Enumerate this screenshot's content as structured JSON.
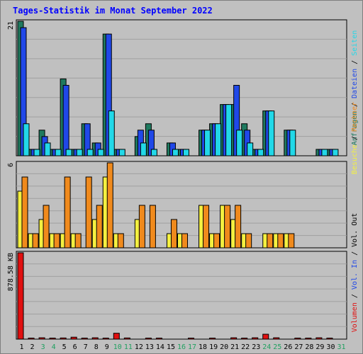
{
  "title": "Tages-Statistik im Monat September 2022",
  "colors": {
    "background": "#c0c0c0",
    "grid": "#a0a0a0",
    "anfragen": "#1f7a5f",
    "dateien": "#2048e8",
    "seiten": "#22d8e8",
    "besuche": "#f4f040",
    "rechner": "#f08a1c",
    "volumen": "#e01010",
    "day_normal": "#000000",
    "day_weekend": "#20a060",
    "day_today": "#20a060"
  },
  "chart_data": [
    {
      "type": "bar",
      "name": "hits",
      "ylabel_max": "21",
      "ylim": [
        0,
        21
      ],
      "legend_parts": [
        {
          "text": "Anfragen",
          "color_key": "anfragen"
        },
        {
          "text": " / ",
          "color_key": "day_normal"
        },
        {
          "text": "Dateien",
          "color_key": "dateien"
        },
        {
          "text": " / ",
          "color_key": "day_normal"
        },
        {
          "text": "Seiten",
          "color_key": "seiten"
        }
      ],
      "x": [
        1,
        2,
        3,
        4,
        5,
        6,
        7,
        8,
        9,
        10,
        11,
        12,
        13,
        14,
        15,
        16,
        17,
        18,
        19,
        20,
        21,
        22,
        23,
        24,
        25,
        26,
        27,
        28,
        29,
        30,
        31
      ],
      "series": [
        {
          "name": "Anfragen",
          "values": [
            21,
            1,
            4,
            1,
            12,
            1,
            5,
            2,
            19,
            1,
            0,
            3,
            5,
            0,
            2,
            1,
            0,
            4,
            5,
            8,
            8,
            5,
            1,
            7,
            0,
            4,
            0,
            0,
            1,
            1,
            0
          ],
          "color_key": "anfragen"
        },
        {
          "name": "Dateien",
          "values": [
            20,
            1,
            3,
            1,
            11,
            1,
            5,
            2,
            19,
            1,
            0,
            4,
            4,
            0,
            2,
            1,
            0,
            4,
            5,
            8,
            11,
            4,
            1,
            7,
            0,
            4,
            0,
            0,
            1,
            1,
            0
          ],
          "color_key": "dateien"
        },
        {
          "name": "Seiten",
          "values": [
            5,
            1,
            2,
            1,
            1,
            1,
            1,
            1,
            7,
            1,
            0,
            2,
            1,
            0,
            1,
            1,
            0,
            4,
            5,
            8,
            4,
            2,
            1,
            7,
            0,
            4,
            0,
            0,
            1,
            1,
            0
          ],
          "color_key": "seiten"
        }
      ]
    },
    {
      "type": "bar",
      "name": "visits",
      "ylabel_max": "6",
      "ylim": [
        0,
        6
      ],
      "legend_parts": [
        {
          "text": "Besuche",
          "color_key": "besuche"
        },
        {
          "text": " / ",
          "color_key": "day_normal"
        },
        {
          "text": "Rechner",
          "color_key": "rechner"
        }
      ],
      "x": [
        1,
        2,
        3,
        4,
        5,
        6,
        7,
        8,
        9,
        10,
        11,
        12,
        13,
        14,
        15,
        16,
        17,
        18,
        19,
        20,
        21,
        22,
        23,
        24,
        25,
        26,
        27,
        28,
        29,
        30,
        31
      ],
      "series": [
        {
          "name": "Besuche",
          "values": [
            4,
            1,
            2,
            1,
            1,
            1,
            0,
            2,
            5,
            1,
            0,
            2,
            0,
            0,
            1,
            1,
            0,
            3,
            1,
            3,
            2,
            1,
            0,
            1,
            1,
            1,
            0,
            0,
            0,
            0,
            0
          ],
          "color_key": "besuche"
        },
        {
          "name": "Rechner",
          "values": [
            5,
            1,
            3,
            1,
            5,
            1,
            5,
            3,
            6,
            1,
            0,
            3,
            3,
            0,
            2,
            1,
            0,
            3,
            1,
            3,
            3,
            1,
            0,
            1,
            1,
            1,
            0,
            0,
            0,
            0,
            0
          ],
          "color_key": "rechner"
        }
      ]
    },
    {
      "type": "bar",
      "name": "volume",
      "ylabel_max": "878.58 KB",
      "ylim": [
        0,
        878.58
      ],
      "legend_parts": [
        {
          "text": "Volumen",
          "color_key": "volumen"
        },
        {
          "text": " / ",
          "color_key": "day_normal"
        },
        {
          "text": "Vol. In",
          "color_key": "dateien"
        },
        {
          "text": " / ",
          "color_key": "day_normal"
        },
        {
          "text": "Vol. Out",
          "color_key": "day_normal"
        }
      ],
      "x": [
        1,
        2,
        3,
        4,
        5,
        6,
        7,
        8,
        9,
        10,
        11,
        12,
        13,
        14,
        15,
        16,
        17,
        18,
        19,
        20,
        21,
        22,
        23,
        24,
        25,
        26,
        27,
        28,
        29,
        30,
        31
      ],
      "series": [
        {
          "name": "Volumen",
          "values": [
            878.58,
            10,
            14,
            10,
            12,
            20,
            10,
            14,
            10,
            60,
            12,
            0,
            10,
            10,
            0,
            0,
            10,
            0,
            10,
            0,
            14,
            10,
            14,
            50,
            14,
            0,
            10,
            10,
            14,
            10,
            0
          ],
          "color_key": "volumen"
        }
      ]
    }
  ],
  "day_labels": [
    "1",
    "2",
    "3",
    "4",
    "5",
    "6",
    "7",
    "8",
    "9",
    "10",
    "11",
    "12",
    "13",
    "14",
    "15",
    "16",
    "17",
    "18",
    "19",
    "20",
    "21",
    "22",
    "23",
    "24",
    "25",
    "26",
    "27",
    "28",
    "29",
    "30",
    "31"
  ],
  "day_label_colors": [
    "day_normal",
    "day_normal",
    "day_weekend",
    "day_weekend",
    "day_normal",
    "day_normal",
    "day_normal",
    "day_normal",
    "day_normal",
    "day_weekend",
    "day_weekend",
    "day_normal",
    "day_normal",
    "day_normal",
    "day_normal",
    "day_weekend",
    "day_weekend",
    "day_normal",
    "day_normal",
    "day_normal",
    "day_normal",
    "day_normal",
    "day_normal",
    "day_weekend",
    "day_weekend",
    "day_normal",
    "day_normal",
    "day_normal",
    "day_normal",
    "day_normal",
    "day_weekend"
  ]
}
